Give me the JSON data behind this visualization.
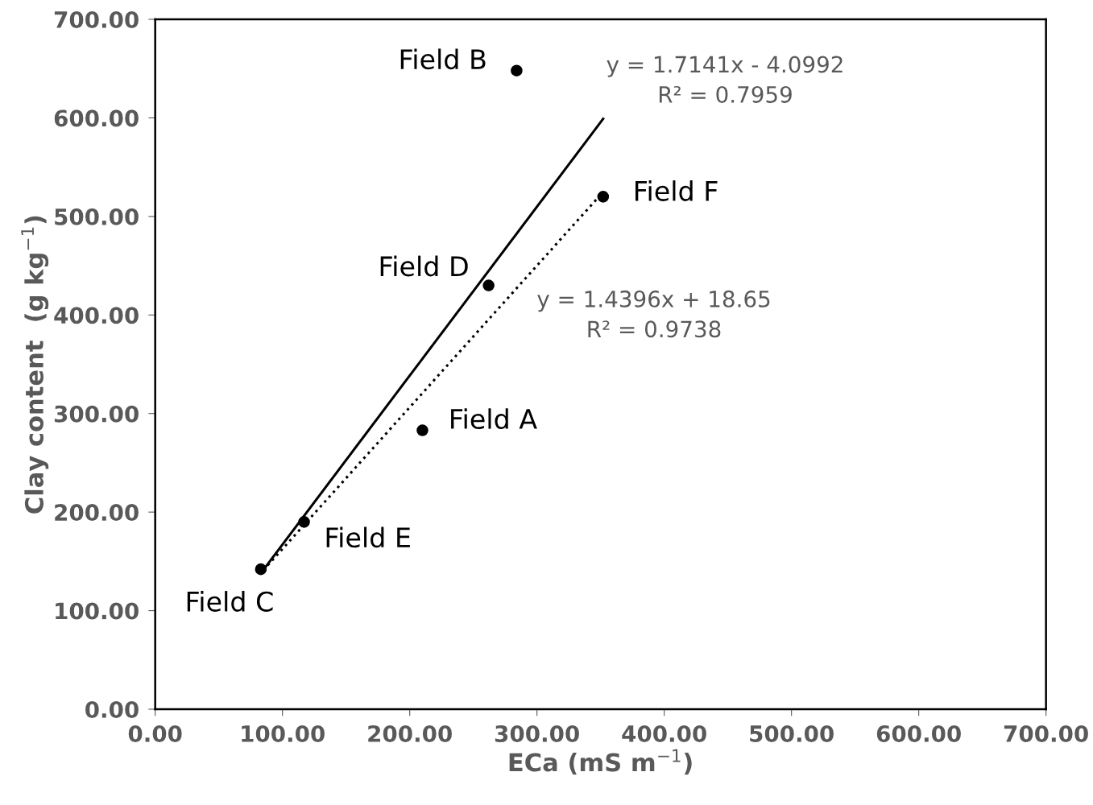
{
  "chart_data": {
    "type": "scatter",
    "xlabel": "ECa (mS m$^{−1}$)",
    "ylabel": "Clay content  (g kg$^{−1}$)",
    "x": [
      210,
      284,
      83,
      262,
      117,
      352
    ],
    "series": [
      {
        "color": "#000000",
        "values": [
          283,
          648,
          142,
          430,
          190,
          520
        ],
        "marker": "circle"
      },
      {
        "type": "line",
        "x": [
          83,
          352
        ],
        "values": [
          138,
          599
        ],
        "color": "#000000",
        "line_style": "solid",
        "marker": "none"
      },
      {
        "type": "line",
        "x": [
          85,
          350
        ],
        "values": [
          141,
          522
        ],
        "color": "#000000",
        "line_style": "dotted",
        "marker": "none"
      }
    ],
    "annotations": [
      {
        "text": "Field A",
        "x": 210,
        "y": 283
      },
      {
        "text": "Field B",
        "x": 284,
        "y": 648
      },
      {
        "text": "Field C",
        "x": 83,
        "y": 142
      },
      {
        "text": "Field D",
        "x": 262,
        "y": 430
      },
      {
        "text": "Field E",
        "x": 117,
        "y": 190
      },
      {
        "text": "Field F",
        "x": 352,
        "y": 520
      },
      "y = 1.7141x - 4.0992\nR² = 0.7959",
      "y = 1.4396x + 18.65\nR² = 0.9738"
    ],
    "xlim": [
      0,
      700
    ],
    "ylim": [
      0,
      700
    ],
    "xticks": [
      {
        "value": 0,
        "label": "0.00"
      },
      {
        "value": 100,
        "label": "100.00"
      },
      {
        "value": 200,
        "label": "200.00"
      },
      {
        "value": 300,
        "label": "300.00"
      },
      {
        "value": 400,
        "label": "400.00"
      },
      {
        "value": 500,
        "label": "500.00"
      },
      {
        "value": 600,
        "label": "600.00"
      },
      {
        "value": 700,
        "label": "700.00"
      }
    ],
    "yticks": [
      {
        "value": 0,
        "label": "0.00"
      },
      {
        "value": 100,
        "label": "100.00"
      },
      {
        "value": 200,
        "label": "200.00"
      },
      {
        "value": 300,
        "label": "300.00"
      },
      {
        "value": 400,
        "label": "400.00"
      },
      {
        "value": 500,
        "label": "500.00"
      },
      {
        "value": 600,
        "label": "600.00"
      },
      {
        "value": 700,
        "label": "700.00"
      }
    ],
    "grid": false,
    "legend": false
  }
}
